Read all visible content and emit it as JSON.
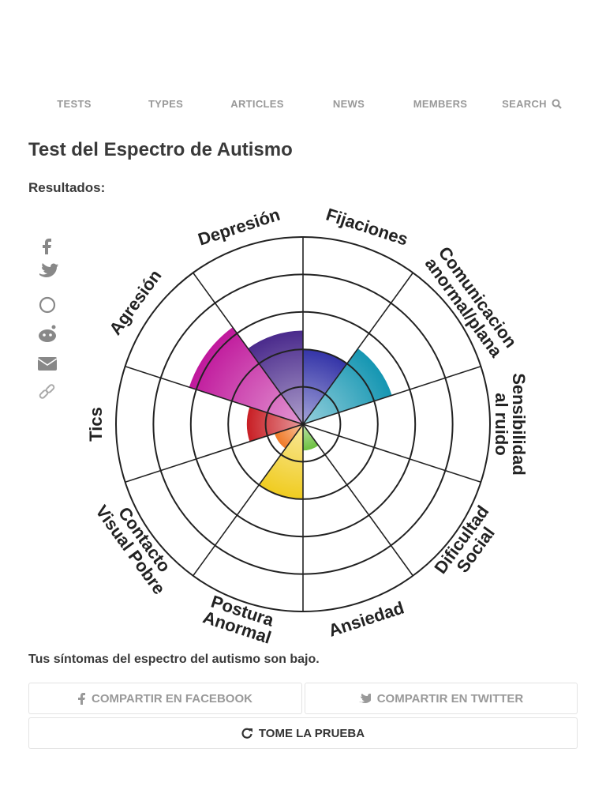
{
  "nav": [
    "TESTS",
    "TYPES",
    "ARTICLES",
    "NEWS",
    "MEMBERS",
    "SEARCH"
  ],
  "title": "Test del Espectro de Autismo",
  "results_label": "Resultados:",
  "chart_data": {
    "type": "polar",
    "categories": [
      [
        "Fijaciones"
      ],
      [
        "Comunicacion",
        "anormal/plana"
      ],
      [
        "Sensibilidad",
        "al ruido"
      ],
      [
        "Dificultad",
        "Social"
      ],
      [
        "Ansiedad"
      ],
      [
        "Postura",
        "Anormal"
      ],
      [
        "Contacto",
        "Visual Pobre"
      ],
      [
        "Tics"
      ],
      [
        "Agresión"
      ],
      [
        "Depresión"
      ]
    ],
    "values": [
      2,
      2.5,
      0,
      0,
      0.7,
      2,
      0.8,
      1.5,
      3.2,
      2.5
    ],
    "colors": [
      "#3434a8",
      "#1596b2",
      "#3aa0c0",
      "#5ab848",
      "#6cc040",
      "#f0cc20",
      "#f07a28",
      "#c81e24",
      "#c0189c",
      "#4a2a8c"
    ],
    "rlim": [
      0,
      5
    ],
    "rticks": [
      1,
      2,
      3,
      4,
      5
    ]
  },
  "summary": "Tus síntomas del espectro del autismo son bajo.",
  "buttons": [
    "COMPARTIR EN FACEBOOK",
    "COMPARTIR EN TWITTER",
    "TOME LA PRUEBA"
  ]
}
